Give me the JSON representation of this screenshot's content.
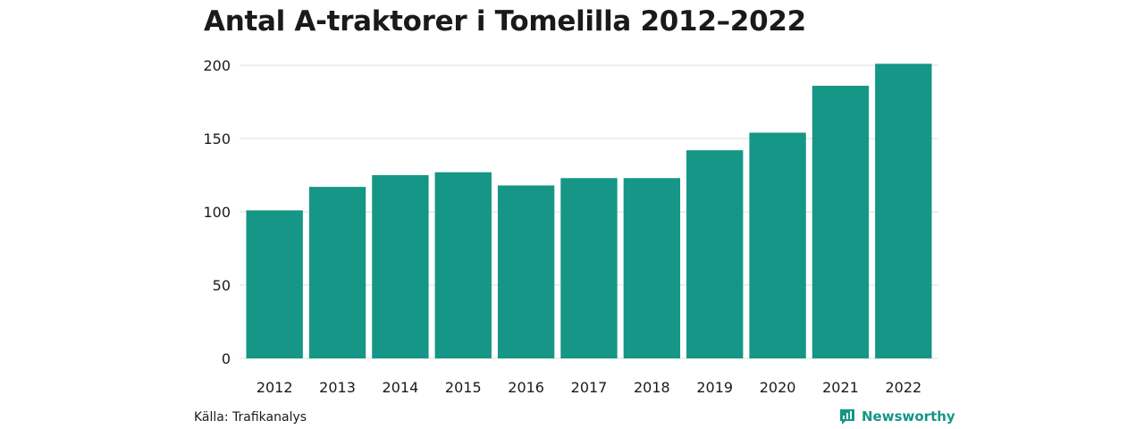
{
  "title": "Antal A-traktorer i Tomelilla 2012–2022",
  "source": "Källa: Trafikanalys",
  "brand": {
    "name": "Newsworthy",
    "icon": "newsworthy-logo-icon"
  },
  "colors": {
    "bar": "#159686",
    "grid": "#dddddd",
    "text": "#1a1a1a"
  },
  "chart_data": {
    "type": "bar",
    "title": "Antal A-traktorer i Tomelilla 2012–2022",
    "xlabel": "",
    "ylabel": "",
    "categories": [
      "2012",
      "2013",
      "2014",
      "2015",
      "2016",
      "2017",
      "2018",
      "2019",
      "2020",
      "2021",
      "2022"
    ],
    "values": [
      101,
      117,
      125,
      127,
      118,
      123,
      123,
      142,
      154,
      186,
      201
    ],
    "ylim": [
      0,
      200
    ],
    "yticks": [
      0,
      50,
      100,
      150,
      200
    ],
    "grid": true,
    "legend": "none"
  }
}
